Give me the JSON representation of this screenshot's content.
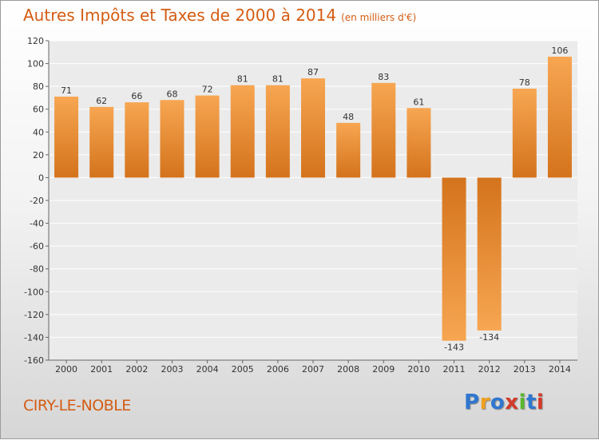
{
  "title": "Autres Impôts et Taxes de 2000 à 2014",
  "subtitle": "(en milliers d'€)",
  "commune": "CIRY-LE-NOBLE",
  "logo": {
    "letters": [
      "P",
      "r",
      "o",
      "x",
      "i",
      "t",
      "i"
    ],
    "colors": [
      "#2e77d0",
      "#f0a020",
      "#2e77d0",
      "#d43a2a",
      "#58b82c",
      "#2e77d0",
      "#d43a2a"
    ]
  },
  "colors": {
    "title": "#d45c13",
    "bar_light": "#f7a652",
    "bar_dark": "#d4731c",
    "plot_bg": "#ebebeb",
    "grid": "#ffffff"
  },
  "chart_data": {
    "type": "bar",
    "categories": [
      "2000",
      "2001",
      "2002",
      "2003",
      "2004",
      "2005",
      "2006",
      "2007",
      "2008",
      "2009",
      "2010",
      "2011",
      "2012",
      "2013",
      "2014"
    ],
    "values": [
      71,
      62,
      66,
      68,
      72,
      81,
      81,
      87,
      48,
      83,
      61,
      -143,
      -134,
      78,
      106
    ],
    "ylim": [
      -160,
      120
    ],
    "yticks": [
      120,
      100,
      80,
      60,
      40,
      20,
      0,
      -20,
      -40,
      -60,
      -80,
      -100,
      -120,
      -140,
      -160
    ],
    "ytick_labels": [
      "120",
      "100",
      "80",
      "60",
      "40",
      "20",
      "0",
      "-20",
      "-40",
      "-60",
      "-80",
      "-100",
      "-120",
      "-140",
      "-160"
    ],
    "grid": true
  }
}
